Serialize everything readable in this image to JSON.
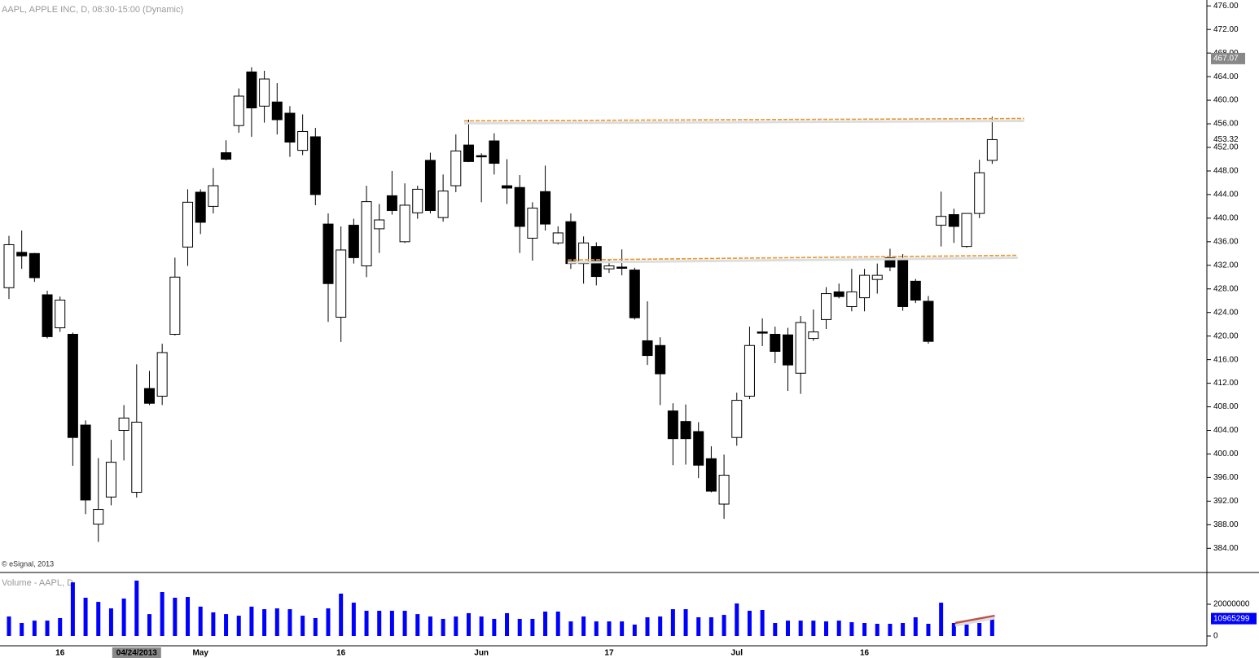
{
  "chart_data": [
    {
      "type": "candlestick",
      "title": "AAPL, APPLE INC, D, 08:30-15:00 (Dynamic)",
      "annotation": "© eSignal, 2013",
      "categories": [
        null,
        null,
        null,
        null,
        "16",
        null,
        null,
        null,
        null,
        null,
        "04/24/2013",
        null,
        null,
        null,
        null,
        "May",
        null,
        null,
        null,
        null,
        null,
        null,
        null,
        null,
        null,
        null,
        "16",
        null,
        null,
        null,
        null,
        null,
        null,
        null,
        null,
        null,
        null,
        "Jun",
        null,
        null,
        null,
        null,
        null,
        null,
        null,
        null,
        null,
        "17",
        null,
        null,
        null,
        null,
        null,
        null,
        null,
        null,
        null,
        "Jul",
        null,
        null,
        null,
        null,
        null,
        null,
        null,
        null,
        null,
        "16",
        null,
        null,
        null,
        null,
        null,
        null,
        null,
        null,
        null,
        null
      ],
      "open": [
        428.2,
        434.2,
        434.0,
        427.0,
        421.4,
        420.3,
        404.9,
        388.1,
        392.7,
        404.0,
        393.5,
        411.1,
        409.8,
        420.3,
        435.1,
        444.4,
        442.0,
        451.1,
        455.7,
        464.8,
        459.0,
        459.7,
        457.8,
        451.5,
        453.8,
        439.0,
        423.2,
        438.8,
        431.9,
        438.2,
        443.8,
        436.0,
        440.9,
        449.8,
        440.1,
        445.5,
        452.4,
        450.6,
        453.1,
        445.5,
        445.2,
        436.6,
        444.5,
        435.8,
        439.4,
        432.3,
        435.2,
        431.4,
        431.7,
        431.2,
        419.2,
        418.4,
        407.3,
        405.5,
        403.8,
        399.2,
        391.5,
        402.8,
        409.8,
        420.7,
        420.3,
        420.2,
        413.7,
        419.6,
        422.8,
        427.5,
        425.0,
        426.5,
        429.6,
        433.3,
        433.0,
        429.3,
        425.9,
        438.8,
        440.6,
        435.2,
        440.8,
        449.8
      ],
      "high": [
        437.0,
        437.9,
        434.1,
        427.7,
        426.7,
        420.6,
        405.7,
        399.3,
        402.4,
        408.3,
        415.2,
        414.1,
        418.7,
        433.3,
        444.9,
        444.9,
        448.5,
        453.2,
        462.0,
        465.6,
        465.0,
        462.9,
        459.0,
        457.6,
        455.3,
        440.8,
        438.6,
        439.9,
        445.5,
        442.4,
        448.0,
        445.9,
        445.5,
        451.1,
        447.4,
        454.2,
        456.7,
        451.0,
        454.4,
        450.0,
        447.3,
        442.7,
        448.9,
        438.6,
        440.8,
        436.9,
        435.9,
        433.0,
        434.7,
        431.6,
        425.9,
        419.8,
        408.6,
        408.4,
        405.4,
        401.3,
        399.9,
        410.4,
        421.6,
        423.0,
        421.6,
        421.4,
        423.4,
        424.5,
        428.3,
        428.9,
        431.4,
        431.4,
        432.3,
        434.8,
        433.9,
        429.7,
        426.8,
        444.5,
        441.6,
        440.8,
        449.9,
        457.2
      ],
      "low": [
        426.3,
        431.4,
        429.2,
        419.6,
        420.7,
        398.0,
        389.8,
        385.1,
        391.3,
        398.9,
        392.6,
        408.3,
        408.3,
        420.1,
        431.9,
        437.3,
        440.8,
        449.8,
        454.5,
        453.8,
        456.2,
        454.2,
        450.4,
        450.7,
        442.2,
        422.4,
        419.0,
        432.3,
        430.0,
        434.1,
        440.6,
        435.8,
        439.9,
        440.8,
        439.4,
        444.4,
        449.5,
        442.7,
        447.4,
        442.4,
        434.1,
        432.8,
        437.9,
        435.5,
        431.4,
        428.9,
        428.6,
        430.7,
        430.3,
        422.8,
        415.1,
        408.3,
        398.1,
        398.2,
        395.9,
        393.5,
        389.0,
        401.4,
        409.3,
        418.3,
        415.4,
        410.7,
        410.2,
        419.2,
        421.2,
        426.4,
        424.2,
        424.2,
        427.2,
        431.0,
        424.3,
        425.6,
        418.7,
        435.2,
        435.8,
        435.0,
        440.0,
        449.2
      ],
      "close": [
        435.5,
        433.6,
        429.9,
        419.9,
        426.1,
        402.8,
        392.2,
        390.6,
        398.6,
        406.1,
        405.4,
        408.6,
        417.2,
        430.0,
        442.7,
        439.3,
        445.5,
        450.0,
        460.7,
        458.7,
        463.6,
        456.7,
        452.9,
        454.7,
        444.0,
        428.9,
        434.6,
        433.3,
        442.8,
        439.7,
        441.3,
        442.2,
        444.9,
        441.3,
        444.6,
        451.4,
        449.6,
        450.4,
        449.3,
        445.1,
        438.6,
        441.7,
        439.0,
        437.5,
        432.3,
        435.8,
        430.1,
        431.9,
        431.6,
        423.1,
        416.7,
        413.6,
        402.6,
        402.6,
        398.1,
        393.7,
        396.4,
        409.1,
        418.4,
        420.6,
        417.4,
        415.1,
        422.3,
        420.7,
        427.2,
        426.7,
        427.5,
        430.3,
        430.3,
        431.7,
        425.0,
        426.1,
        419.1,
        440.3,
        438.6,
        440.8,
        447.7,
        453.32
      ],
      "ylim": [
        379.9,
        477
      ],
      "yticks": [
        {
          "value": 384,
          "label": "384.00"
        },
        {
          "value": 388,
          "label": "388.00"
        },
        {
          "value": 392,
          "label": "392.00"
        },
        {
          "value": 396,
          "label": "396.00"
        },
        {
          "value": 400,
          "label": "400.00"
        },
        {
          "value": 404,
          "label": "404.00"
        },
        {
          "value": 408,
          "label": "408.00"
        },
        {
          "value": 412,
          "label": "412.00"
        },
        {
          "value": 416,
          "label": "416.00"
        },
        {
          "value": 420,
          "label": "420.00"
        },
        {
          "value": 424,
          "label": "424.00"
        },
        {
          "value": 428,
          "label": "428.00"
        },
        {
          "value": 432,
          "label": "432.00"
        },
        {
          "value": 436,
          "label": "436.00"
        },
        {
          "value": 440,
          "label": "440.00"
        },
        {
          "value": 444,
          "label": "444.00"
        },
        {
          "value": 448,
          "label": "448.00"
        },
        {
          "value": 452,
          "label": "452.00"
        },
        {
          "value": 456,
          "label": "456.00"
        },
        {
          "value": 460,
          "label": "460.00"
        },
        {
          "value": 464,
          "label": "464.00"
        },
        {
          "value": 468,
          "label": "468.00"
        },
        {
          "value": 472,
          "label": "472.00"
        },
        {
          "value": 476,
          "label": "476.00"
        }
      ],
      "price_markers": [
        467.07,
        453.32
      ],
      "trendlines": [
        {
          "color": "#e8962e",
          "x": [
            35.65,
            79.5
          ],
          "y": [
            456.5,
            456.9
          ]
        },
        {
          "color": "#e8962e",
          "x": [
            43.75,
            79.0
          ],
          "y": [
            432.9,
            433.7
          ]
        }
      ]
    },
    {
      "type": "bar",
      "title": "Volume - AAPL, D",
      "color": "#0000ff",
      "values": [
        12300000,
        8200000,
        9700000,
        9700000,
        11300000,
        33800000,
        24100000,
        21500000,
        17400000,
        23600000,
        34900000,
        13800000,
        27700000,
        24100000,
        24600000,
        18500000,
        14900000,
        13800000,
        12800000,
        18500000,
        16900000,
        17400000,
        16900000,
        12800000,
        11300000,
        17400000,
        26700000,
        21000000,
        15900000,
        15900000,
        15900000,
        15900000,
        13800000,
        12300000,
        10800000,
        12300000,
        14400000,
        12300000,
        10800000,
        14400000,
        10800000,
        10800000,
        15400000,
        15400000,
        9200000,
        12300000,
        9200000,
        9200000,
        9200000,
        7200000,
        11800000,
        12300000,
        16900000,
        16900000,
        11800000,
        11800000,
        13300000,
        20500000,
        15900000,
        16400000,
        8200000,
        9700000,
        9700000,
        9700000,
        9200000,
        9700000,
        8700000,
        8200000,
        7700000,
        7700000,
        8200000,
        11800000,
        7700000,
        21000000,
        8200000,
        7200000,
        8200000,
        10965299
      ],
      "ylim": [
        -6150000,
        40000000
      ],
      "yticks": [
        0,
        20000000
      ],
      "value_marker": 10965299,
      "trendlines": [
        {
          "color": "#c0504d",
          "x": [
            74.1,
            77.2
          ],
          "y": [
            8200000,
            12800000
          ]
        }
      ]
    }
  ]
}
